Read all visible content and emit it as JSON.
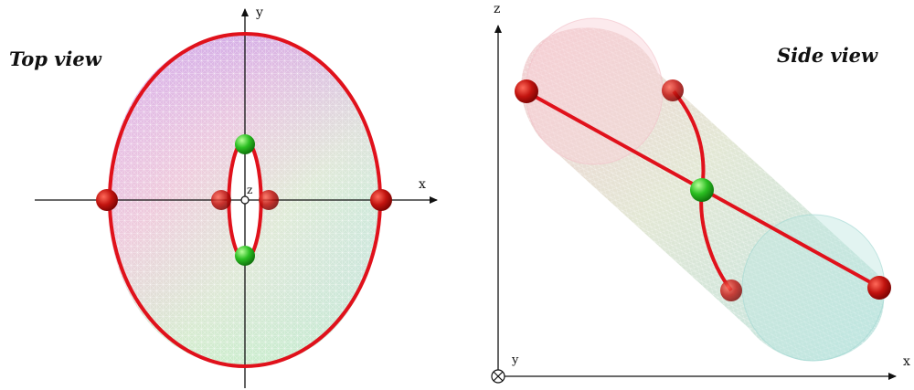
{
  "top_view": {
    "title": "Top view",
    "axes": {
      "x_label": "x",
      "y_label": "y",
      "z_label": "z"
    }
  },
  "side_view": {
    "title": "Side view",
    "axes": {
      "x_label": "x",
      "y_label": "y",
      "z_label": "z"
    }
  },
  "colors": {
    "curve": "#e0111b",
    "red_sphere": "#b00000",
    "green_sphere": "#22b21f",
    "axis": "#111111"
  }
}
